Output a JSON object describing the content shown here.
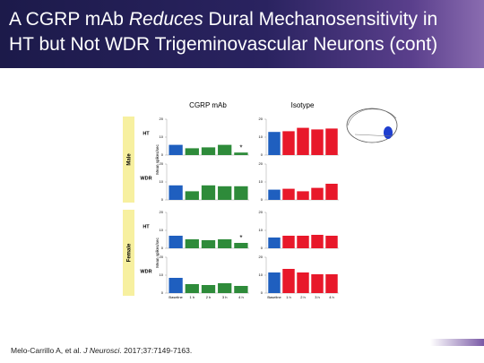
{
  "header": {
    "title": {
      "line1": [
        "A CGRP mAb ",
        "Reduces",
        " Dural Mechanosensitivity in"
      ],
      "line2": "HT but Not WDR Trigeminovascular Neurons (cont)"
    }
  },
  "columns": [
    "CGRP mAb",
    "Isotype"
  ],
  "groups": [
    {
      "label": "Male",
      "rows": [
        "HT",
        "WDR"
      ],
      "ylabel": "Mean spikes/sec"
    },
    {
      "label": "Female",
      "rows": [
        "HT",
        "WDR"
      ],
      "ylabel": "Mean spikes/sec"
    }
  ],
  "chart_data": [
    {
      "type": "bar",
      "values": [
        5.7,
        3.8,
        4.3,
        5.7,
        1.4
      ],
      "colors": [
        "#1f5fbf",
        "#2e8b3a",
        "#2e8b3a",
        "#2e8b3a",
        "#2e8b3a"
      ],
      "ylim": [
        0,
        20
      ],
      "yticks": [
        0,
        10,
        20
      ],
      "annotation": "*"
    },
    {
      "type": "bar",
      "values": [
        12.9,
        13.3,
        15.2,
        14.3,
        14.8
      ],
      "colors": [
        "#1f5fbf",
        "#e8182a",
        "#e8182a",
        "#e8182a",
        "#e8182a"
      ],
      "ylim": [
        0,
        20
      ],
      "yticks": [
        0,
        10,
        20
      ]
    },
    {
      "type": "bar",
      "values": [
        8.1,
        4.8,
        8.1,
        7.6,
        7.6
      ],
      "colors": [
        "#1f5fbf",
        "#2e8b3a",
        "#2e8b3a",
        "#2e8b3a",
        "#2e8b3a"
      ],
      "ylim": [
        0,
        20
      ],
      "yticks": [
        0,
        10,
        20
      ]
    },
    {
      "type": "bar",
      "values": [
        5.7,
        6.2,
        4.8,
        6.7,
        9.0
      ],
      "colors": [
        "#1f5fbf",
        "#e8182a",
        "#e8182a",
        "#e8182a",
        "#e8182a"
      ],
      "ylim": [
        0,
        20
      ],
      "yticks": [
        0,
        10,
        20
      ]
    },
    {
      "type": "bar",
      "values": [
        7,
        5,
        4.5,
        5,
        3
      ],
      "colors": [
        "#1f5fbf",
        "#2e8b3a",
        "#2e8b3a",
        "#2e8b3a",
        "#2e8b3a"
      ],
      "ylim": [
        0,
        20
      ],
      "yticks": [
        0,
        10,
        20
      ],
      "annotation": "*"
    },
    {
      "type": "bar",
      "values": [
        6,
        7,
        7,
        7.5,
        7
      ],
      "colors": [
        "#1f5fbf",
        "#e8182a",
        "#e8182a",
        "#e8182a",
        "#e8182a"
      ],
      "ylim": [
        0,
        20
      ],
      "yticks": [
        0,
        10,
        20
      ]
    },
    {
      "type": "bar",
      "categories": [
        "Baseline",
        "1 h",
        "2 h",
        "3 h",
        "4 h"
      ],
      "values": [
        8.5,
        5,
        4.5,
        5.5,
        4
      ],
      "colors": [
        "#1f5fbf",
        "#2e8b3a",
        "#2e8b3a",
        "#2e8b3a",
        "#2e8b3a"
      ],
      "ylim": [
        0,
        20
      ],
      "yticks": [
        0,
        10,
        20
      ]
    },
    {
      "type": "bar",
      "categories": [
        "Baseline",
        "1 h",
        "2 h",
        "3 h",
        "4 h"
      ],
      "values": [
        11.5,
        13.5,
        11.5,
        10.5,
        10.5
      ],
      "colors": [
        "#1f5fbf",
        "#e8182a",
        "#e8182a",
        "#e8182a",
        "#e8182a"
      ],
      "ylim": [
        0,
        20
      ],
      "yticks": [
        0,
        10,
        20
      ]
    }
  ],
  "citation": [
    "Melo-Carrillo A, et al. ",
    "J Neurosci",
    ". 2017;37:7149-7163."
  ]
}
